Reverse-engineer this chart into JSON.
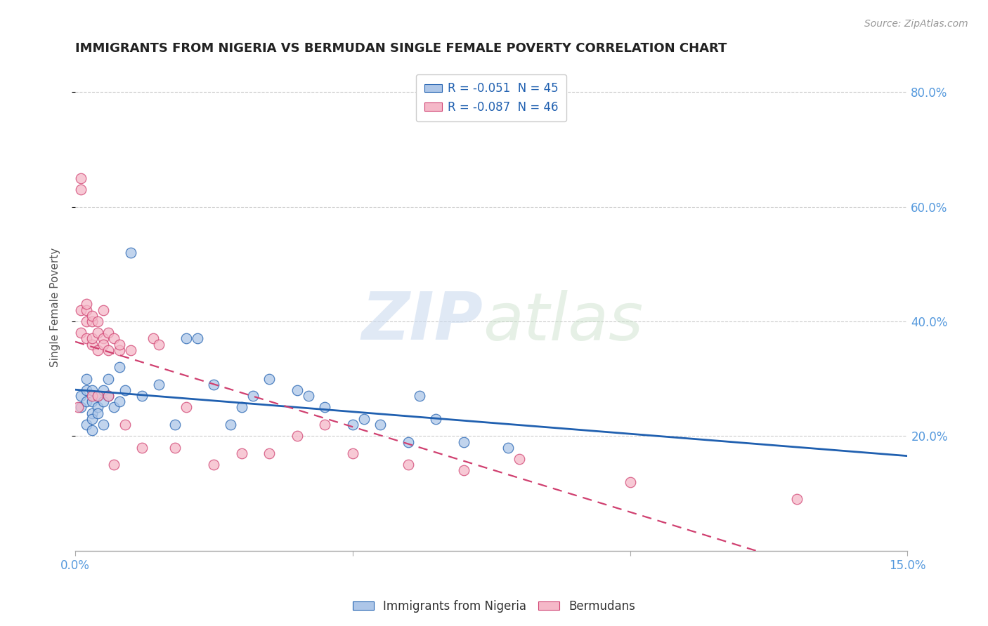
{
  "title": "IMMIGRANTS FROM NIGERIA VS BERMUDAN SINGLE FEMALE POVERTY CORRELATION CHART",
  "source": "Source: ZipAtlas.com",
  "ylabel": "Single Female Poverty",
  "xlim": [
    0.0,
    0.15
  ],
  "ylim": [
    0.0,
    0.85
  ],
  "xticks": [
    0.0,
    0.05,
    0.1,
    0.15
  ],
  "xtick_labels": [
    "0.0%",
    "",
    "",
    "15.0%"
  ],
  "yticks_right": [
    0.2,
    0.4,
    0.6,
    0.8
  ],
  "legend_r1": "R = -0.051  N = 45",
  "legend_r2": "R = -0.087  N = 46",
  "color_blue": "#adc6e8",
  "color_pink": "#f5b8c8",
  "line_blue": "#2060b0",
  "line_pink": "#d04070",
  "watermark_zip": "ZIP",
  "watermark_atlas": "atlas",
  "nigeria_x": [
    0.001,
    0.001,
    0.002,
    0.002,
    0.002,
    0.002,
    0.003,
    0.003,
    0.003,
    0.003,
    0.003,
    0.004,
    0.004,
    0.004,
    0.005,
    0.005,
    0.005,
    0.006,
    0.006,
    0.007,
    0.008,
    0.008,
    0.009,
    0.01,
    0.012,
    0.015,
    0.018,
    0.02,
    0.022,
    0.025,
    0.028,
    0.03,
    0.032,
    0.035,
    0.04,
    0.042,
    0.045,
    0.05,
    0.052,
    0.055,
    0.06,
    0.062,
    0.065,
    0.07,
    0.078
  ],
  "nigeria_y": [
    0.25,
    0.27,
    0.26,
    0.28,
    0.3,
    0.22,
    0.24,
    0.26,
    0.28,
    0.23,
    0.21,
    0.25,
    0.27,
    0.24,
    0.26,
    0.28,
    0.22,
    0.3,
    0.27,
    0.25,
    0.32,
    0.26,
    0.28,
    0.52,
    0.27,
    0.29,
    0.22,
    0.37,
    0.37,
    0.29,
    0.22,
    0.25,
    0.27,
    0.3,
    0.28,
    0.27,
    0.25,
    0.22,
    0.23,
    0.22,
    0.19,
    0.27,
    0.23,
    0.19,
    0.18
  ],
  "bermuda_x": [
    0.0005,
    0.001,
    0.001,
    0.001,
    0.001,
    0.002,
    0.002,
    0.002,
    0.002,
    0.003,
    0.003,
    0.003,
    0.003,
    0.003,
    0.004,
    0.004,
    0.004,
    0.004,
    0.005,
    0.005,
    0.005,
    0.006,
    0.006,
    0.006,
    0.007,
    0.007,
    0.008,
    0.008,
    0.009,
    0.01,
    0.012,
    0.014,
    0.015,
    0.018,
    0.02,
    0.025,
    0.03,
    0.035,
    0.04,
    0.045,
    0.05,
    0.06,
    0.07,
    0.08,
    0.1,
    0.13
  ],
  "bermuda_y": [
    0.25,
    0.63,
    0.65,
    0.38,
    0.42,
    0.42,
    0.43,
    0.37,
    0.4,
    0.36,
    0.4,
    0.41,
    0.37,
    0.27,
    0.38,
    0.4,
    0.35,
    0.27,
    0.37,
    0.36,
    0.42,
    0.38,
    0.35,
    0.27,
    0.37,
    0.15,
    0.35,
    0.36,
    0.22,
    0.35,
    0.18,
    0.37,
    0.36,
    0.18,
    0.25,
    0.15,
    0.17,
    0.17,
    0.2,
    0.22,
    0.17,
    0.15,
    0.14,
    0.16,
    0.12,
    0.09
  ],
  "background_color": "#ffffff",
  "grid_color": "#cccccc"
}
